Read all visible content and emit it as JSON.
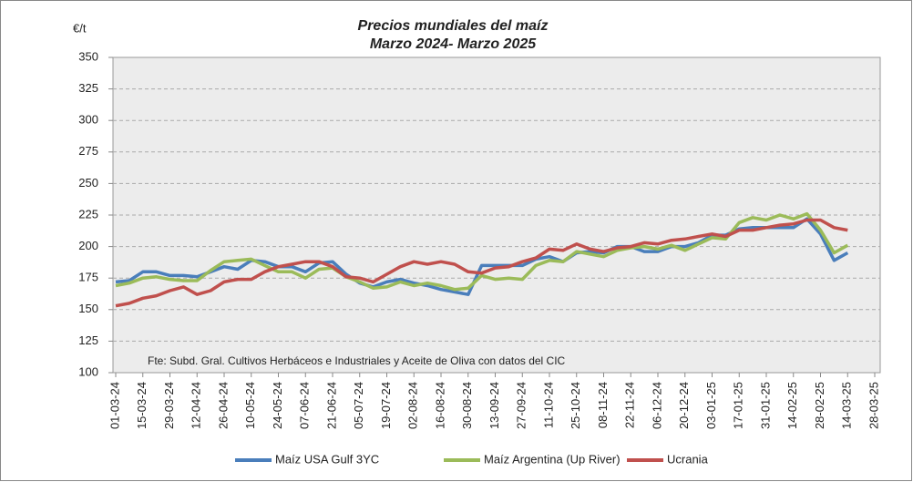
{
  "chart_data": {
    "type": "line",
    "title": "Precios mundiales del maíz",
    "subtitle": "Marzo 2024- Marzo 2025",
    "y_label": "€/t",
    "annotation": "Fte: Subd. Gral. Cultivos Herbáceos e Industriales y Aceite de Oliva con datos del CIC",
    "x": [
      "01-03-24",
      "08-03-24",
      "15-03-24",
      "22-03-24",
      "29-03-24",
      "05-04-24",
      "12-04-24",
      "19-04-24",
      "26-04-24",
      "03-05-24",
      "10-05-24",
      "17-05-24",
      "24-05-24",
      "31-05-24",
      "07-06-24",
      "14-06-24",
      "21-06-24",
      "28-06-24",
      "05-07-24",
      "12-07-24",
      "19-07-24",
      "26-07-24",
      "02-08-24",
      "09-08-24",
      "16-08-24",
      "23-08-24",
      "30-08-24",
      "06-09-24",
      "13-09-24",
      "20-09-24",
      "27-09-24",
      "04-10-24",
      "11-10-24",
      "18-10-24",
      "25-10-24",
      "01-11-24",
      "08-11-24",
      "15-11-24",
      "22-11-24",
      "29-11-24",
      "06-12-24",
      "13-12-24",
      "20-12-24",
      "27-12-24",
      "03-01-25",
      "10-01-25",
      "17-01-25",
      "24-01-25",
      "31-01-25",
      "07-02-25",
      "14-02-25",
      "21-02-25",
      "28-02-25",
      "07-03-25",
      "14-03-25"
    ],
    "series": [
      {
        "name": "Maíz USA Gulf 3YC",
        "color": "#4a7ebb",
        "values": [
          172,
          173,
          180,
          180,
          177,
          177,
          176,
          180,
          184,
          182,
          189,
          188,
          184,
          184,
          180,
          187,
          188,
          178,
          171,
          168,
          172,
          174,
          171,
          169,
          166,
          164,
          162,
          185,
          185,
          185,
          185,
          190,
          192,
          188,
          195,
          196,
          195,
          200,
          200,
          196,
          196,
          200,
          200,
          203,
          209,
          209,
          214,
          215,
          215,
          215,
          215,
          222,
          210,
          189,
          195
        ]
      },
      {
        "name": "Maíz Argentina (Up River)",
        "color": "#9bbb59",
        "values": [
          169,
          171,
          175,
          176,
          174,
          173,
          173,
          181,
          188,
          189,
          190,
          185,
          180,
          180,
          175,
          182,
          183,
          176,
          172,
          167,
          168,
          172,
          169,
          171,
          169,
          166,
          167,
          177,
          174,
          175,
          174,
          185,
          189,
          188,
          196,
          194,
          192,
          197,
          199,
          200,
          198,
          201,
          197,
          202,
          207,
          206,
          219,
          223,
          221,
          225,
          222,
          226,
          213,
          195,
          201
        ]
      },
      {
        "name": "Ucrania",
        "color": "#c0504d",
        "values": [
          153,
          155,
          159,
          161,
          165,
          168,
          162,
          165,
          172,
          174,
          174,
          180,
          184,
          186,
          188,
          188,
          184,
          176,
          175,
          172,
          178,
          184,
          188,
          186,
          188,
          186,
          180,
          179,
          183,
          184,
          188,
          191,
          198,
          197,
          202,
          198,
          196,
          199,
          200,
          203,
          202,
          205,
          206,
          208,
          210,
          208,
          213,
          213,
          215,
          217,
          218,
          221,
          221,
          215,
          213
        ]
      }
    ],
    "xlim": [
      "01-03-24",
      "28-03-25"
    ],
    "xticks": [
      "01-03-24",
      "15-03-24",
      "29-03-24",
      "12-04-24",
      "26-04-24",
      "10-05-24",
      "24-05-24",
      "07-06-24",
      "21-06-24",
      "05-07-24",
      "19-07-24",
      "02-08-24",
      "16-08-24",
      "30-08-24",
      "13-09-24",
      "27-09-24",
      "11-10-24",
      "25-10-24",
      "08-11-24",
      "22-11-24",
      "06-12-24",
      "20-12-24",
      "03-01-25",
      "17-01-25",
      "31-01-25",
      "14-02-25",
      "28-02-25",
      "14-03-25",
      "28-03-25"
    ],
    "ylim": [
      100,
      350
    ],
    "yticks": [
      100,
      125,
      150,
      175,
      200,
      225,
      250,
      275,
      300,
      325,
      350
    ],
    "grid": true,
    "legend": "bottom"
  }
}
